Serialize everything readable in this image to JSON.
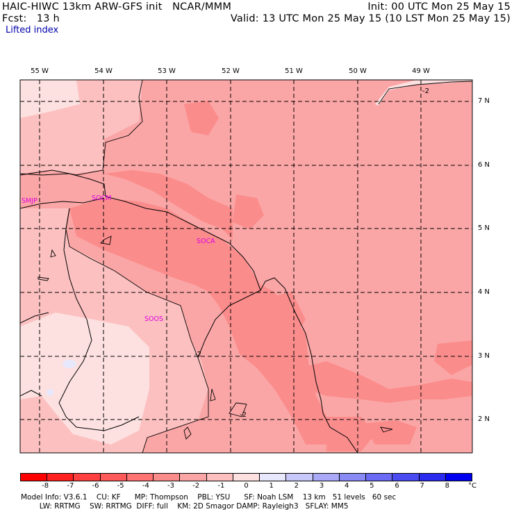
{
  "header": {
    "model_title": "HAIC-HIWC 13km ARW-GFS init   NCAR/MMM",
    "init": "Init: 00 UTC Mon 25 May 15",
    "fcst_label": "Fcst:   13 h",
    "valid": "Valid: 13 UTC Mon 25 May 15 (10 LST Mon 25 May 15)",
    "field_name": "Lifted index"
  },
  "map": {
    "longitude_labels": [
      "55 W",
      "54 W",
      "53 W",
      "52 W",
      "51 W",
      "50 W",
      "49 W"
    ],
    "latitude_labels": [
      "7 N",
      "6 N",
      "5 N",
      "4 N",
      "3 N",
      "2 N"
    ],
    "stations": [
      "SMJP",
      "SOCM",
      "SOCA",
      "SOOS"
    ],
    "contour_labels": [
      "-2",
      "-2",
      "-2"
    ]
  },
  "colorbar": {
    "ticks": [
      "-8",
      "-7",
      "-6",
      "-5",
      "-4",
      "-3",
      "-2",
      "-1",
      "0",
      "1",
      "2",
      "3",
      "4",
      "5",
      "6",
      "7",
      "8"
    ],
    "unit": "°C",
    "colors": [
      "#ff0000",
      "#ff2020",
      "#ff4040",
      "#ff5a5a",
      "#ff7373",
      "#fb8c8c",
      "#fba6a6",
      "#fcc0c0",
      "#fde0e0",
      "#e8e8fd",
      "#c8c8fb",
      "#a9a9f8",
      "#8a8af5",
      "#6a6af4",
      "#4b4bf2",
      "#2b2bf0",
      "#0000f0"
    ]
  },
  "footer": {
    "line1": "Model Info: V3.6.1    CU: KF      MP: Thompson    PBL: YSU      SF: Noah LSM    13 km   51 levels   60 sec",
    "line2": "        LW: RRTMG    SW: RRTMG  DIFF: full    KM: 2D Smagor DAMP: Rayleigh3   SFLAY: MM5"
  }
}
